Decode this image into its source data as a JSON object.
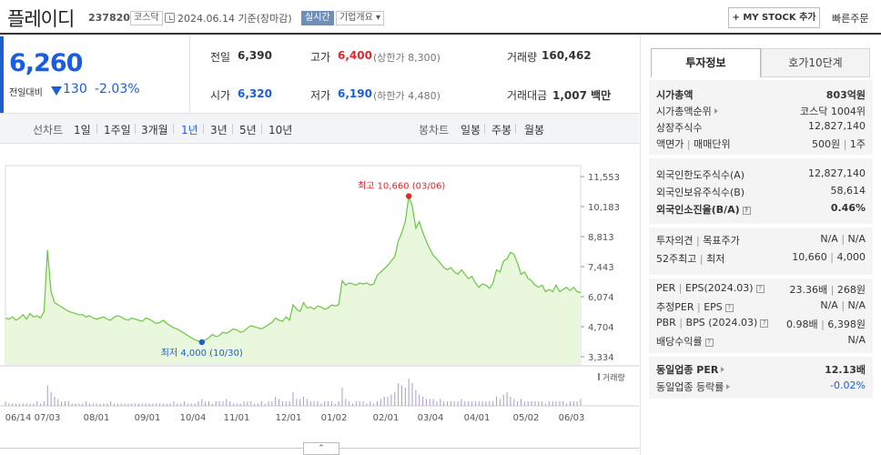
{
  "header": {
    "name": "플레이디",
    "code": "237820",
    "market": "코스닥",
    "date": "2024.06.14 기준(장마감)",
    "realtime": "실시간",
    "company_info": "기업개요 ▾",
    "mystock": "+ MY STOCK 추가",
    "quick_order": "빠른주문"
  },
  "price": {
    "current": "6,260",
    "change_label": "전일대비",
    "change": "130",
    "change_pct": "-2.03%"
  },
  "stats": {
    "prev_label": "전일",
    "prev": "6,390",
    "high_label": "고가",
    "high": "6,400",
    "upper_limit": "(상한가 8,300)",
    "volume_label": "거래량",
    "volume": "160,462",
    "open_label": "시가",
    "open": "6,320",
    "low_label": "저가",
    "low": "6,190",
    "lower_limit": "(하한가 4,480)",
    "amount_label": "거래대금",
    "amount": "1,007 백만"
  },
  "period": {
    "line_label": "선차트",
    "items": [
      "1일",
      "1주일",
      "3개월",
      "1년",
      "3년",
      "5년",
      "10년"
    ],
    "active": "1년",
    "candle_label": "봉차트",
    "candles": [
      "일봉",
      "주봉",
      "월봉"
    ]
  },
  "chart_data": {
    "type": "area",
    "y_ticks": [
      "11,553",
      "10,183",
      "8,813",
      "7,443",
      "6,074",
      "4,704",
      "3,334"
    ],
    "ylim": [
      3334,
      11553
    ],
    "x_ticks": [
      "06/14",
      "07/03",
      "08/01",
      "09/01",
      "10/04",
      "11/01",
      "12/01",
      "01/02",
      "02/01",
      "03/04",
      "04/01",
      "05/02",
      "06/03"
    ],
    "values": [
      5100,
      5050,
      5150,
      5000,
      5100,
      5250,
      5050,
      5300,
      5150,
      5200,
      5100,
      5400,
      8200,
      6300,
      5800,
      5700,
      5600,
      5500,
      5400,
      5350,
      5300,
      5250,
      5250,
      5150,
      5200,
      5100,
      5050,
      5100,
      5150,
      5050,
      5000,
      5150,
      5200,
      5150,
      5050,
      5000,
      5100,
      5050,
      5000,
      4950,
      5100,
      5050,
      4950,
      4850,
      4900,
      5000,
      4850,
      4750,
      4650,
      4600,
      4500,
      4400,
      4300,
      4200,
      4100,
      4050,
      4000,
      4100,
      4200,
      4350,
      4250,
      4300,
      4450,
      4400,
      4500,
      4600,
      4550,
      4450,
      4500,
      4650,
      4750,
      4700,
      4650,
      4600,
      4700,
      4800,
      4900,
      5100,
      5000,
      4950,
      5150,
      5000,
      5700,
      5500,
      5400,
      5800,
      5550,
      5600,
      5500,
      5650,
      5600,
      5500,
      5550,
      5700,
      5650,
      5700,
      6800,
      6600,
      6700,
      6650,
      6600,
      6700,
      6650,
      6700,
      6600,
      6650,
      7050,
      7200,
      7350,
      7500,
      7700,
      7900,
      8600,
      9000,
      9500,
      10660,
      10200,
      9200,
      9500,
      9000,
      8600,
      8250,
      7950,
      7800,
      7600,
      7400,
      7300,
      7400,
      7200,
      7100,
      7300,
      7100,
      6900,
      7000,
      6700,
      6500,
      6650,
      6600,
      6450,
      6700,
      7300,
      7200,
      7700,
      7800,
      8100,
      8000,
      7600,
      7100,
      7200,
      6900,
      6800,
      6600,
      6500,
      6600,
      6300,
      6400,
      6300,
      6600,
      6300,
      6400,
      6500,
      6350,
      6500,
      6300,
      6260
    ],
    "high": {
      "label": "최고 10,660 (03/06)",
      "value": 10660
    },
    "low": {
      "label": "최저 4,000 (10/30)",
      "value": 4000
    },
    "volume_label": "거래량",
    "volume": [
      2,
      1,
      1,
      1,
      1,
      1,
      1,
      1,
      1,
      2,
      1,
      2,
      9,
      6,
      4,
      3,
      2,
      2,
      2,
      1,
      1,
      1,
      1,
      2,
      1,
      1,
      1,
      1,
      1,
      1,
      2,
      1,
      1,
      1,
      1,
      1,
      1,
      1,
      1,
      1,
      1,
      1,
      1,
      1,
      1,
      1,
      1,
      1,
      2,
      1,
      1,
      2,
      1,
      1,
      1,
      2,
      3,
      2,
      2,
      1,
      2,
      2,
      2,
      3,
      2,
      1,
      1,
      1,
      2,
      2,
      2,
      1,
      1,
      2,
      1,
      2,
      2,
      4,
      3,
      2,
      2,
      2,
      6,
      3,
      3,
      4,
      3,
      2,
      2,
      2,
      1,
      2,
      2,
      2,
      1,
      2,
      8,
      3,
      2,
      1,
      2,
      2,
      2,
      1,
      2,
      1,
      2,
      3,
      4,
      4,
      5,
      6,
      10,
      9,
      8,
      12,
      10,
      7,
      5,
      4,
      3,
      3,
      3,
      2,
      3,
      2,
      2,
      2,
      2,
      2,
      3,
      2,
      2,
      2,
      2,
      2,
      2,
      2,
      2,
      2,
      4,
      3,
      5,
      6,
      4,
      3,
      2,
      3,
      2,
      2,
      2,
      2,
      2,
      2,
      1,
      2,
      2,
      2,
      2,
      2,
      1,
      2,
      2,
      2,
      3
    ],
    "colors": {
      "line": "#6cc644",
      "fill": "#e9f7dc",
      "high": "#e5242e",
      "low": "#1f5fc9"
    }
  },
  "tabs": {
    "invest": "투자정보",
    "hoga": "호가10단계"
  },
  "invest": {
    "market_cap_label": "시가총액",
    "market_cap": "803억원",
    "rank_label": "시가총액순위",
    "rank": "코스닥 1004위",
    "shares_label": "상장주식수",
    "shares": "12,827,140",
    "par_label": "액면가",
    "par_sep": "|",
    "unit_label": "매매단위",
    "par": "500원",
    "unit": "1주",
    "foreign_limit_label": "외국인한도주식수(A)",
    "foreign_limit": "12,827,140",
    "foreign_hold_label": "외국인보유주식수(B)",
    "foreign_hold": "58,614",
    "foreign_ratio_label": "외국인소진율(B/A)",
    "foreign_ratio": "0.46%",
    "opinion_label": "투자의견",
    "target_label": "목표주가",
    "opinion": "N/A",
    "target": "N/A",
    "w52_label": "52주최고",
    "w52_low_label": "최저",
    "w52_high": "10,660",
    "w52_low": "4,000",
    "per_label": "PER",
    "eps_label": "EPS(2024.03)",
    "per": "23.36배",
    "eps": "268원",
    "est_per_label": "추정PER",
    "est_eps_label": "EPS",
    "est_per": "N/A",
    "est_eps": "N/A",
    "pbr_label": "PBR",
    "bps_label": "BPS (2024.03)",
    "pbr": "0.98배",
    "bps": "6,398원",
    "div_label": "배당수익률",
    "div": "N/A",
    "ind_per_label": "동일업종 PER",
    "ind_per": "12.13배",
    "ind_rate_label": "동일업종 등락률",
    "ind_rate": "-0.02%"
  },
  "collapse": "⌃"
}
